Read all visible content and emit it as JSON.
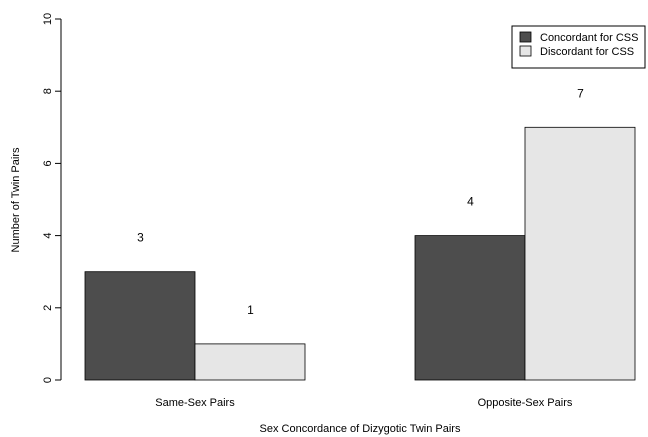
{
  "chart_data": {
    "type": "bar",
    "title": "",
    "xlabel": "Sex Concordance of Dizygotic Twin Pairs",
    "ylabel": "Number of Twin Pairs",
    "categories": [
      "Same-Sex Pairs",
      "Opposite-Sex Pairs"
    ],
    "series": [
      {
        "name": "Concordant for CSS",
        "values": [
          3,
          4
        ],
        "color": "#4d4d4d"
      },
      {
        "name": "Discordant for CSS",
        "values": [
          1,
          7
        ],
        "color": "#e6e6e6"
      }
    ],
    "ylim": [
      0,
      10
    ],
    "yticks": [
      0,
      2,
      4,
      6,
      8,
      10
    ],
    "data_labels": [
      "3",
      "1",
      "4",
      "7"
    ],
    "grid": false,
    "legend_position": "top-right"
  }
}
